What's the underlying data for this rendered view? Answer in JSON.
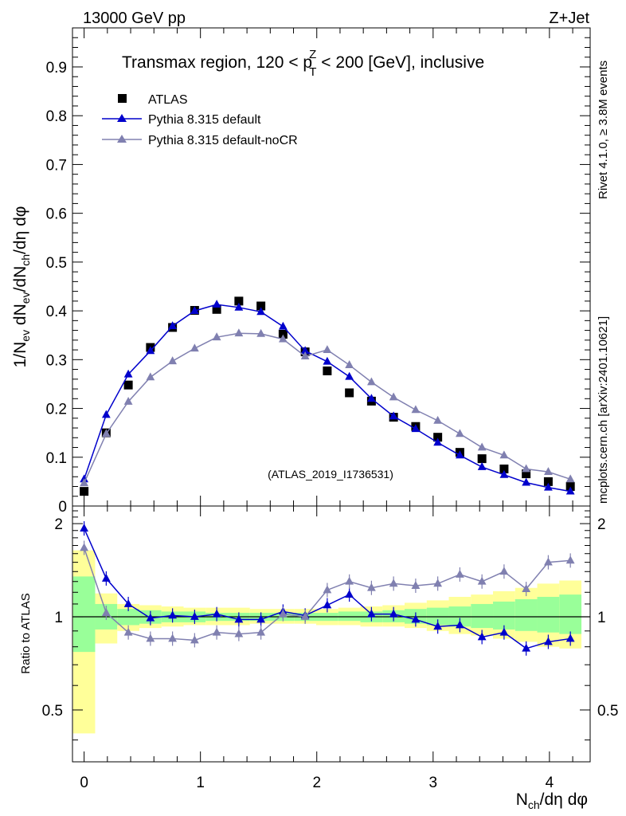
{
  "header": {
    "left": "13000 GeV pp",
    "right": "Z+Jet"
  },
  "side_labels": {
    "rivet": "Rivet 4.1.0, ≥ 3.8M events",
    "mcplots": "mcplots.cern.ch [arXiv:2401.10621]"
  },
  "watermark": "(ATLAS_2019_I1736531)",
  "colors": {
    "atlas": "#000000",
    "pythia_default": "#0000cc",
    "pythia_nocr": "#8080b0",
    "band_yellow": "#ffff99",
    "band_green": "#99ff99"
  },
  "chart_data": [
    {
      "type": "scatter",
      "title": "Transmax region, 120 < pTZ < 200 [GeV], inclusive",
      "title_parts": {
        "before": "Transmax region, 120 < p",
        "sub": "T",
        "sup": "Z",
        "after": " < 200 [GeV], inclusive"
      },
      "ylabel": "1/N_ev dN_ev/dN_ch/dη dφ",
      "ylabel_parts": {
        "a": "1/N",
        "b": "ev",
        "c": " dN",
        "d": "ev",
        "e": "/dN",
        "f": "ch",
        "g": "/dη dφ"
      },
      "xlim": [
        -0.1,
        4.35
      ],
      "ylim": [
        0,
        0.98
      ],
      "yticks": [
        0,
        0.1,
        0.2,
        0.3,
        0.4,
        0.5,
        0.6,
        0.7,
        0.8,
        0.9
      ],
      "ytick_labels": [
        "0",
        "0.1",
        "0.2",
        "0.3",
        "0.4",
        "0.5",
        "0.6",
        "0.7",
        "0.8",
        "0.9"
      ],
      "legend": [
        "ATLAS",
        "Pythia 8.315 default",
        "Pythia 8.315 default-noCR"
      ],
      "x": [
        0,
        0.19,
        0.38,
        0.57,
        0.76,
        0.95,
        1.14,
        1.33,
        1.52,
        1.71,
        1.9,
        2.09,
        2.28,
        2.47,
        2.66,
        2.85,
        3.04,
        3.23,
        3.42,
        3.61,
        3.8,
        3.99,
        4.18
      ],
      "series": [
        {
          "name": "ATLAS",
          "values": [
            0.03,
            0.15,
            0.248,
            0.325,
            0.366,
            0.401,
            0.403,
            0.42,
            0.41,
            0.352,
            0.316,
            0.277,
            0.232,
            0.215,
            0.182,
            0.163,
            0.141,
            0.11,
            0.097,
            0.076,
            0.066,
            0.05,
            0.04
          ]
        },
        {
          "name": "Pythia 8.315 default",
          "values": [
            0.055,
            0.187,
            0.27,
            0.318,
            0.369,
            0.4,
            0.413,
            0.407,
            0.398,
            0.368,
            0.318,
            0.296,
            0.265,
            0.22,
            0.184,
            0.158,
            0.13,
            0.104,
            0.08,
            0.064,
            0.048,
            0.038,
            0.03
          ]
        },
        {
          "name": "Pythia 8.315 default-noCR",
          "values": [
            0.047,
            0.148,
            0.214,
            0.264,
            0.297,
            0.323,
            0.346,
            0.354,
            0.353,
            0.342,
            0.307,
            0.32,
            0.289,
            0.254,
            0.223,
            0.197,
            0.175,
            0.148,
            0.12,
            0.104,
            0.076,
            0.07,
            0.055
          ]
        }
      ]
    },
    {
      "type": "scatter",
      "ylabel": "Ratio to ATLAS",
      "xlabel": "N_ch/dη dφ",
      "xlabel_parts": {
        "a": "N",
        "b": "ch",
        "c": "/dη dφ"
      },
      "xlim": [
        -0.1,
        4.35
      ],
      "ylim": [
        0.34,
        2.28
      ],
      "xticks": [
        0,
        1,
        2,
        3,
        4
      ],
      "xtick_labels": [
        "0",
        "1",
        "2",
        "3",
        "4"
      ],
      "yticks": [
        0.5,
        1,
        2
      ],
      "ytick_labels": [
        "0.5",
        "1",
        "2"
      ],
      "reference_line": 1,
      "band_yellow": {
        "lo": [
          0.42,
          0.82,
          0.9,
          0.92,
          0.93,
          0.94,
          0.94,
          0.94,
          0.95,
          0.95,
          0.95,
          0.94,
          0.94,
          0.93,
          0.93,
          0.92,
          0.9,
          0.88,
          0.87,
          0.85,
          0.83,
          0.8,
          0.79
        ],
        "hi": [
          1.64,
          1.19,
          1.1,
          1.09,
          1.08,
          1.07,
          1.07,
          1.07,
          1.06,
          1.06,
          1.06,
          1.06,
          1.07,
          1.08,
          1.09,
          1.11,
          1.13,
          1.16,
          1.18,
          1.21,
          1.24,
          1.28,
          1.31
        ]
      },
      "band_green": {
        "lo": [
          0.77,
          0.91,
          0.94,
          0.95,
          0.96,
          0.96,
          0.97,
          0.97,
          0.97,
          0.97,
          0.97,
          0.97,
          0.97,
          0.96,
          0.96,
          0.95,
          0.94,
          0.93,
          0.92,
          0.91,
          0.9,
          0.89,
          0.88
        ],
        "hi": [
          1.35,
          1.1,
          1.06,
          1.05,
          1.04,
          1.04,
          1.03,
          1.03,
          1.03,
          1.03,
          1.03,
          1.03,
          1.04,
          1.04,
          1.05,
          1.06,
          1.07,
          1.08,
          1.1,
          1.12,
          1.14,
          1.16,
          1.18
        ]
      },
      "series": [
        {
          "name": "Pythia 8.315 default",
          "values": [
            1.93,
            1.33,
            1.1,
            0.99,
            1.01,
            1.0,
            1.02,
            0.98,
            0.98,
            1.04,
            1.01,
            1.09,
            1.18,
            1.02,
            1.02,
            0.98,
            0.93,
            0.94,
            0.86,
            0.89,
            0.79,
            0.83,
            0.85
          ]
        },
        {
          "name": "Pythia 8.315 default-noCR",
          "values": [
            1.67,
            1.03,
            0.89,
            0.85,
            0.85,
            0.84,
            0.89,
            0.88,
            0.89,
            1.02,
            1.0,
            1.22,
            1.3,
            1.24,
            1.28,
            1.26,
            1.28,
            1.37,
            1.3,
            1.4,
            1.23,
            1.5,
            1.52
          ]
        }
      ]
    }
  ]
}
